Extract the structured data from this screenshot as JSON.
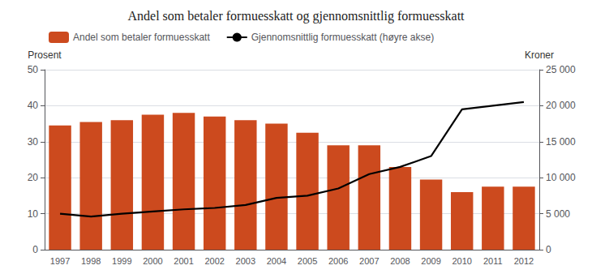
{
  "chart_data": {
    "type": "bar",
    "title": "Andel som betaler formuesskatt og gjennomsnittlig formuesskatt",
    "ylabel": "Prosent",
    "y2label": "Kroner",
    "categories": [
      "1997",
      "1998",
      "1999",
      "2000",
      "2001",
      "2002",
      "2003",
      "2004",
      "2005",
      "2006",
      "2007",
      "2008",
      "2009",
      "2010",
      "2011",
      "2012"
    ],
    "series": [
      {
        "name": "Andel som betaler formuesskatt",
        "type": "bar",
        "color": "#CC4A1E",
        "values": [
          34.5,
          35.5,
          36.0,
          37.5,
          38.0,
          37.0,
          36.0,
          35.0,
          32.5,
          29.0,
          29.0,
          23.0,
          19.5,
          16.0,
          17.5,
          17.5
        ]
      },
      {
        "name": "Gjennomsnittlig formuesskatt (høyre akse)",
        "type": "line",
        "color": "#000000",
        "axis": "y2",
        "values": [
          5000,
          4600,
          5000,
          5300,
          5600,
          5800,
          6200,
          7200,
          7500,
          8500,
          10500,
          11500,
          13000,
          19500,
          20000,
          20500
        ]
      }
    ],
    "ylim": [
      0,
      50
    ],
    "yticks": [
      0,
      10,
      20,
      30,
      40,
      50
    ],
    "y2lim": [
      0,
      25000
    ],
    "y2ticks": [
      0,
      {
        "value": 5000,
        "label": "5 000"
      },
      {
        "value": 10000,
        "label": "10 000"
      },
      {
        "value": 15000,
        "label": "15 000"
      },
      {
        "value": 20000,
        "label": "20 000"
      },
      {
        "value": 25000,
        "label": "25 000"
      }
    ],
    "grid": true,
    "legend": "upper left"
  }
}
